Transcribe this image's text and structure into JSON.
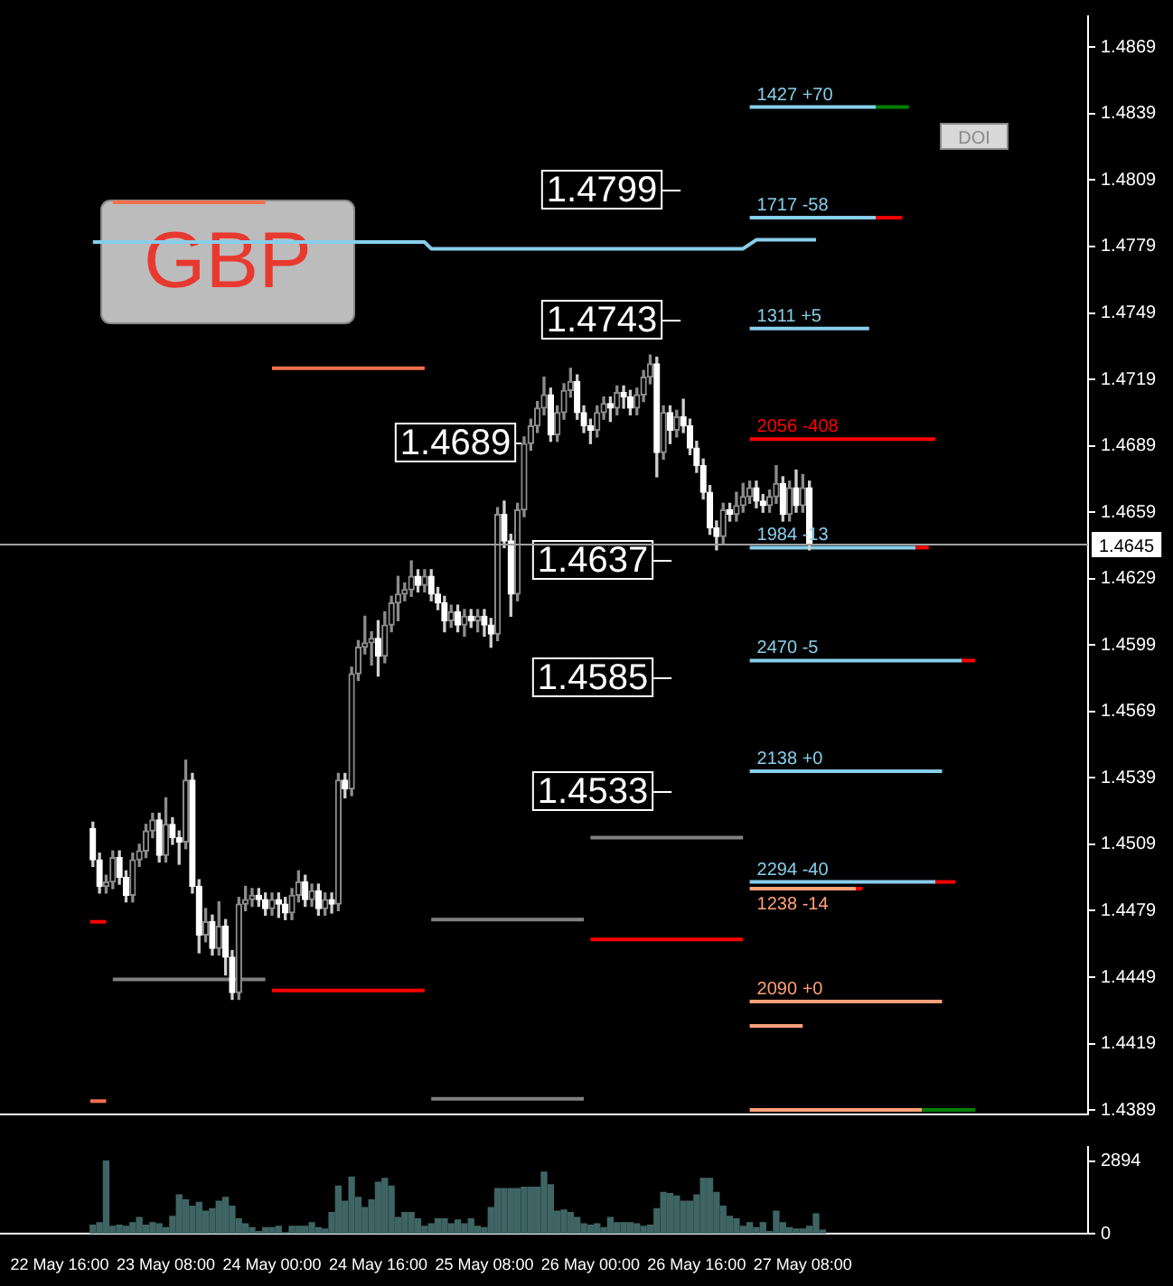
{
  "chart_data": [
    {
      "type": "candlestick",
      "xlim": [
        "--05-22T07:00",
        "--05-29T03:00"
      ],
      "ylim": [
        1.4387,
        1.4883
      ],
      "tick_labels": "y",
      "yticks": [
        1.4869,
        1.4839,
        1.4809,
        1.4779,
        1.4749,
        1.4719,
        1.4689,
        1.4659,
        1.4629,
        1.4599,
        1.4569,
        1.4539,
        1.4509,
        1.4479,
        1.4449,
        1.4419,
        1.4389
      ],
      "x": [
        "--05-22T21:00",
        "--05-22T22:00",
        "--05-22T23:00",
        "--05-23T00:00",
        "--05-23T01:00",
        "--05-23T02:00",
        "--05-23T03:00",
        "--05-23T04:00",
        "--05-23T05:00",
        "--05-23T06:00",
        "--05-23T07:00",
        "--05-23T08:00",
        "--05-23T09:00",
        "--05-23T10:00",
        "--05-23T11:00",
        "--05-23T12:00",
        "--05-23T13:00",
        "--05-23T14:00",
        "--05-23T15:00",
        "--05-23T16:00",
        "--05-23T17:00",
        "--05-23T18:00",
        "--05-23T19:00",
        "--05-23T20:00",
        "--05-23T21:00",
        "--05-23T22:00",
        "--05-23T23:00",
        "--05-24T00:00",
        "--05-24T01:00",
        "--05-24T02:00",
        "--05-24T03:00",
        "--05-24T04:00",
        "--05-24T05:00",
        "--05-24T06:00",
        "--05-24T07:00",
        "--05-24T08:00",
        "--05-24T09:00",
        "--05-24T10:00",
        "--05-24T11:00",
        "--05-24T12:00",
        "--05-24T13:00",
        "--05-24T14:00",
        "--05-24T15:00",
        "--05-24T16:00",
        "--05-24T17:00",
        "--05-24T18:00",
        "--05-24T19:00",
        "--05-24T20:00",
        "--05-24T21:00",
        "--05-24T22:00",
        "--05-24T23:00",
        "--05-25T00:00",
        "--05-25T01:00",
        "--05-25T02:00",
        "--05-25T03:00",
        "--05-25T04:00",
        "--05-25T05:00",
        "--05-25T06:00",
        "--05-25T07:00",
        "--05-25T08:00",
        "--05-25T09:00",
        "--05-25T10:00",
        "--05-25T11:00",
        "--05-25T12:00",
        "--05-25T13:00",
        "--05-25T14:00",
        "--05-25T15:00",
        "--05-25T16:00",
        "--05-25T17:00",
        "--05-25T18:00",
        "--05-25T19:00",
        "--05-25T20:00",
        "--05-25T21:00",
        "--05-25T22:00",
        "--05-25T23:00",
        "--05-26T00:00",
        "--05-26T01:00",
        "--05-26T02:00",
        "--05-26T03:00",
        "--05-26T04:00",
        "--05-26T05:00",
        "--05-26T06:00",
        "--05-26T07:00",
        "--05-26T08:00",
        "--05-26T09:00",
        "--05-26T10:00",
        "--05-26T11:00",
        "--05-26T12:00",
        "--05-26T13:00",
        "--05-26T14:00",
        "--05-26T15:00",
        "--05-26T16:00",
        "--05-26T17:00",
        "--05-26T18:00",
        "--05-26T19:00",
        "--05-26T20:00",
        "--05-26T21:00",
        "--05-26T22:00",
        "--05-26T23:00",
        "--05-27T00:00",
        "--05-27T01:00",
        "--05-27T02:00",
        "--05-27T03:00",
        "--05-27T04:00",
        "--05-27T05:00",
        "--05-27T06:00",
        "--05-27T07:00",
        "--05-27T08:00",
        "--05-27T09:00"
      ],
      "ohlc": [
        [
          1.4516,
          1.4519,
          1.4499,
          1.4502
        ],
        [
          1.4502,
          1.4505,
          1.4487,
          1.449
        ],
        [
          1.449,
          1.4495,
          1.4487,
          1.4492
        ],
        [
          1.4492,
          1.4506,
          1.4489,
          1.4503
        ],
        [
          1.4503,
          1.4506,
          1.4491,
          1.4494
        ],
        [
          1.4494,
          1.4497,
          1.4483,
          1.4486
        ],
        [
          1.4486,
          1.4505,
          1.4483,
          1.4502
        ],
        [
          1.4502,
          1.4509,
          1.4499,
          1.4506
        ],
        [
          1.4506,
          1.4518,
          1.4503,
          1.4515
        ],
        [
          1.4515,
          1.4523,
          1.4512,
          1.452
        ],
        [
          1.452,
          1.4523,
          1.4501,
          1.4504
        ],
        [
          1.4504,
          1.453,
          1.4501,
          1.4518
        ],
        [
          1.4518,
          1.4521,
          1.4509,
          1.4512
        ],
        [
          1.4512,
          1.4515,
          1.45,
          1.451
        ],
        [
          1.451,
          1.4547,
          1.4507,
          1.4538
        ],
        [
          1.4538,
          1.4541,
          1.4487,
          1.449
        ],
        [
          1.449,
          1.4493,
          1.446,
          1.4468
        ],
        [
          1.4468,
          1.448,
          1.4465,
          1.4474
        ],
        [
          1.4474,
          1.4477,
          1.4459,
          1.4462
        ],
        [
          1.4462,
          1.4483,
          1.4459,
          1.4472
        ],
        [
          1.4472,
          1.4475,
          1.445,
          1.4458
        ],
        [
          1.4458,
          1.4461,
          1.4439,
          1.4442
        ],
        [
          1.4442,
          1.4485,
          1.4439,
          1.4482
        ],
        [
          1.4482,
          1.449,
          1.4479,
          1.4484
        ],
        [
          1.4484,
          1.4489,
          1.4481,
          1.4486
        ],
        [
          1.4486,
          1.4489,
          1.4481,
          1.4484
        ],
        [
          1.4484,
          1.4487,
          1.4477,
          1.448
        ],
        [
          1.448,
          1.4487,
          1.4477,
          1.4484
        ],
        [
          1.4484,
          1.4487,
          1.4476,
          1.4482
        ],
        [
          1.4482,
          1.4485,
          1.4475,
          1.4478
        ],
        [
          1.4478,
          1.4489,
          1.4475,
          1.4486
        ],
        [
          1.4486,
          1.4497,
          1.4483,
          1.4492
        ],
        [
          1.4492,
          1.4495,
          1.4481,
          1.4484
        ],
        [
          1.4484,
          1.4491,
          1.4481,
          1.4488
        ],
        [
          1.4488,
          1.4491,
          1.4477,
          1.448
        ],
        [
          1.448,
          1.4487,
          1.4477,
          1.4484
        ],
        [
          1.4484,
          1.4487,
          1.4478,
          1.4482
        ],
        [
          1.4482,
          1.4541,
          1.4479,
          1.4538
        ],
        [
          1.4538,
          1.4541,
          1.453,
          1.4534
        ],
        [
          1.4534,
          1.4589,
          1.4531,
          1.4586
        ],
        [
          1.4586,
          1.4601,
          1.4583,
          1.4598
        ],
        [
          1.4598,
          1.4612,
          1.4595,
          1.46
        ],
        [
          1.46,
          1.4605,
          1.459,
          1.4602
        ],
        [
          1.4602,
          1.461,
          1.4585,
          1.4594
        ],
        [
          1.4594,
          1.4614,
          1.4591,
          1.4608
        ],
        [
          1.4608,
          1.4621,
          1.4605,
          1.4618
        ],
        [
          1.4618,
          1.463,
          1.461,
          1.4622
        ],
        [
          1.4622,
          1.4627,
          1.4619,
          1.4624
        ],
        [
          1.4624,
          1.4637,
          1.4621,
          1.463
        ],
        [
          1.463,
          1.4633,
          1.4623,
          1.4626
        ],
        [
          1.4626,
          1.4633,
          1.4623,
          1.463
        ],
        [
          1.463,
          1.4633,
          1.4619,
          1.4622
        ],
        [
          1.4622,
          1.4625,
          1.4615,
          1.4618
        ],
        [
          1.4618,
          1.4621,
          1.4605,
          1.461
        ],
        [
          1.461,
          1.4617,
          1.4607,
          1.4614
        ],
        [
          1.4614,
          1.4617,
          1.4605,
          1.4608
        ],
        [
          1.4608,
          1.4615,
          1.4603,
          1.4612
        ],
        [
          1.4612,
          1.4615,
          1.4607,
          1.461
        ],
        [
          1.461,
          1.4615,
          1.4605,
          1.4612
        ],
        [
          1.4612,
          1.4615,
          1.4603,
          1.4608
        ],
        [
          1.4608,
          1.4611,
          1.4598,
          1.4604
        ],
        [
          1.4604,
          1.4661,
          1.4601,
          1.4658
        ],
        [
          1.4658,
          1.4664,
          1.4643,
          1.4646
        ],
        [
          1.4646,
          1.4649,
          1.4612,
          1.4622
        ],
        [
          1.4622,
          1.4663,
          1.4619,
          1.466
        ],
        [
          1.466,
          1.4693,
          1.4657,
          1.469
        ],
        [
          1.469,
          1.4701,
          1.4687,
          1.4698
        ],
        [
          1.4698,
          1.4709,
          1.4695,
          1.4706
        ],
        [
          1.4706,
          1.472,
          1.4703,
          1.4712
        ],
        [
          1.4712,
          1.4715,
          1.4691,
          1.4694
        ],
        [
          1.4694,
          1.4707,
          1.4691,
          1.4704
        ],
        [
          1.4704,
          1.4717,
          1.4701,
          1.4714
        ],
        [
          1.4714,
          1.4724,
          1.4711,
          1.4718
        ],
        [
          1.4718,
          1.4721,
          1.4701,
          1.4704
        ],
        [
          1.4704,
          1.4707,
          1.4695,
          1.4698
        ],
        [
          1.4698,
          1.4701,
          1.469,
          1.4696
        ],
        [
          1.4696,
          1.4707,
          1.4693,
          1.4704
        ],
        [
          1.4704,
          1.4711,
          1.4701,
          1.4708
        ],
        [
          1.4708,
          1.4711,
          1.47,
          1.4706
        ],
        [
          1.4706,
          1.4716,
          1.4703,
          1.4713
        ],
        [
          1.4713,
          1.4716,
          1.4706,
          1.4711
        ],
        [
          1.4711,
          1.4714,
          1.4703,
          1.4706
        ],
        [
          1.4706,
          1.4715,
          1.4703,
          1.4712
        ],
        [
          1.4712,
          1.4723,
          1.4709,
          1.472
        ],
        [
          1.472,
          1.473,
          1.4717,
          1.4726
        ],
        [
          1.4726,
          1.4729,
          1.4675,
          1.4686
        ],
        [
          1.4686,
          1.4707,
          1.4683,
          1.4704
        ],
        [
          1.4704,
          1.4707,
          1.469,
          1.4696
        ],
        [
          1.4696,
          1.4705,
          1.4693,
          1.4702
        ],
        [
          1.4702,
          1.471,
          1.4695,
          1.4698
        ],
        [
          1.4698,
          1.4701,
          1.4685,
          1.4688
        ],
        [
          1.4688,
          1.4691,
          1.4677,
          1.468
        ],
        [
          1.468,
          1.4683,
          1.4665,
          1.4668
        ],
        [
          1.4668,
          1.4671,
          1.4649,
          1.4652
        ],
        [
          1.4652,
          1.4655,
          1.4642,
          1.4648
        ],
        [
          1.4648,
          1.4663,
          1.4645,
          1.466
        ],
        [
          1.466,
          1.4663,
          1.4655,
          1.4658
        ],
        [
          1.4658,
          1.4668,
          1.4655,
          1.4662
        ],
        [
          1.4662,
          1.4672,
          1.4659,
          1.4666
        ],
        [
          1.4666,
          1.4673,
          1.4663,
          1.467
        ],
        [
          1.467,
          1.4673,
          1.4661,
          1.4664
        ],
        [
          1.4664,
          1.4667,
          1.4659,
          1.4662
        ],
        [
          1.4662,
          1.4669,
          1.4659,
          1.4666
        ],
        [
          1.4666,
          1.468,
          1.4663,
          1.4672
        ],
        [
          1.4672,
          1.4675,
          1.4655,
          1.4658
        ],
        [
          1.4658,
          1.4673,
          1.4655,
          1.467
        ],
        [
          1.467,
          1.4678,
          1.4659,
          1.4662
        ],
        [
          1.4662,
          1.4676,
          1.4659,
          1.467
        ],
        [
          1.467,
          1.4673,
          1.4642,
          1.4645
        ]
      ],
      "series": [
        {
          "type": "line",
          "color": "#87ceeb",
          "x": [
            "--05-22T21:00",
            "--05-24T23:00",
            "--05-25T00:00",
            "--05-26T23:00",
            "--05-27T01:00",
            "--05-27T10:00"
          ],
          "values": [
            1.4781,
            1.4781,
            1.4778,
            1.4778,
            1.4782,
            1.4782
          ]
        },
        {
          "type": "line",
          "color": "#f4704c",
          "x": [
            "--05-23T00:00",
            "--05-23T23:00"
          ],
          "values": [
            1.4799,
            1.4799
          ]
        },
        {
          "type": "line",
          "color": "#f4704c",
          "x": [
            "--05-24T00:00",
            "--05-24T23:00"
          ],
          "values": [
            1.4724,
            1.4724
          ]
        },
        {
          "type": "line",
          "color": "#ff0000",
          "x": [
            "--05-22T20:36",
            "--05-22T23:00"
          ],
          "values": [
            1.4474,
            1.4474
          ]
        },
        {
          "type": "line",
          "color": "#f4704c",
          "x": [
            "--05-22T20:36",
            "--05-22T23:00"
          ],
          "values": [
            1.4393,
            1.4393
          ]
        },
        {
          "type": "line",
          "color": "#808080",
          "x": [
            "--05-23T00:00",
            "--05-23T23:00"
          ],
          "values": [
            1.4448,
            1.4448
          ]
        },
        {
          "type": "line",
          "color": "#ff0000",
          "x": [
            "--05-24T00:00",
            "--05-24T23:00"
          ],
          "values": [
            1.4443,
            1.4443
          ]
        },
        {
          "type": "line",
          "color": "#808080",
          "x": [
            "--05-25T00:00",
            "--05-25T23:00"
          ],
          "values": [
            1.4475,
            1.4475
          ]
        },
        {
          "type": "line",
          "color": "#808080",
          "x": [
            "--05-25T00:00",
            "--05-25T23:00"
          ],
          "values": [
            1.4394,
            1.4394
          ]
        },
        {
          "type": "line",
          "color": "#808080",
          "x": [
            "--05-26T00:00",
            "--05-26T23:00"
          ],
          "values": [
            1.4512,
            1.4512
          ]
        },
        {
          "type": "line",
          "color": "#ff0000",
          "x": [
            "--05-26T00:00",
            "--05-26T23:00"
          ],
          "values": [
            1.4466,
            1.4466
          ]
        },
        {
          "type": "line",
          "name": "1427 +70",
          "color": "#87ceeb",
          "x": [
            "--05-27T00:00",
            "--05-27T19:00"
          ],
          "values": [
            1.4842,
            1.4842
          ]
        },
        {
          "type": "line",
          "color": "#008000",
          "x": [
            "--05-27T19:00",
            "--05-28T00:00"
          ],
          "values": [
            1.4842,
            1.4842
          ]
        },
        {
          "type": "line",
          "name": "1717 -58",
          "color": "#87ceeb",
          "x": [
            "--05-27T00:00",
            "--05-27T19:00"
          ],
          "values": [
            1.4792,
            1.4792
          ]
        },
        {
          "type": "line",
          "color": "#ff0000",
          "x": [
            "--05-27T19:00",
            "--05-27T23:00"
          ],
          "values": [
            1.4792,
            1.4792
          ]
        },
        {
          "type": "line",
          "name": "1311 +5",
          "color": "#87ceeb",
          "x": [
            "--05-27T00:00",
            "--05-27T18:00"
          ],
          "values": [
            1.4742,
            1.4742
          ]
        },
        {
          "type": "line",
          "name": "2056 -408",
          "color": "#ff0000",
          "x": [
            "--05-27T00:00",
            "--05-28T04:00"
          ],
          "values": [
            1.4692,
            1.4692
          ]
        },
        {
          "type": "line",
          "name": "1984 -13",
          "color": "#87ceeb",
          "x": [
            "--05-27T00:00",
            "--05-28T01:00"
          ],
          "values": [
            1.4643,
            1.4643
          ]
        },
        {
          "type": "line",
          "color": "#ff0000",
          "x": [
            "--05-28T01:00",
            "--05-28T03:00"
          ],
          "values": [
            1.4643,
            1.4643
          ]
        },
        {
          "type": "line",
          "name": "2470 -5",
          "color": "#87ceeb",
          "x": [
            "--05-27T00:00",
            "--05-28T08:00"
          ],
          "values": [
            1.4592,
            1.4592
          ]
        },
        {
          "type": "line",
          "color": "#ff0000",
          "x": [
            "--05-28T08:00",
            "--05-28T10:00"
          ],
          "values": [
            1.4592,
            1.4592
          ]
        },
        {
          "type": "line",
          "name": "2138 +0",
          "color": "#87ceeb",
          "x": [
            "--05-27T00:00",
            "--05-28T05:00"
          ],
          "values": [
            1.4542,
            1.4542
          ]
        },
        {
          "type": "line",
          "name": "2294 -40",
          "color": "#87ceeb",
          "x": [
            "--05-27T00:00",
            "--05-28T04:00"
          ],
          "values": [
            1.4492,
            1.4492
          ]
        },
        {
          "type": "line",
          "color": "#ff0000",
          "x": [
            "--05-28T04:00",
            "--05-28T07:00"
          ],
          "values": [
            1.4492,
            1.4492
          ]
        },
        {
          "type": "line",
          "name": "1238 -14",
          "color": "#ffa07a",
          "x": [
            "--05-27T00:00",
            "--05-27T16:00"
          ],
          "values": [
            1.4489,
            1.4489
          ]
        },
        {
          "type": "line",
          "color": "#ff0000",
          "x": [
            "--05-27T16:00",
            "--05-27T17:00"
          ],
          "values": [
            1.4489,
            1.4489
          ]
        },
        {
          "type": "line",
          "name": "2090 +0",
          "color": "#ffa07a",
          "x": [
            "--05-27T00:00",
            "--05-28T05:00"
          ],
          "values": [
            1.4438,
            1.4438
          ]
        },
        {
          "type": "line",
          "color": "#ffa07a",
          "x": [
            "--05-27T00:00",
            "--05-27T08:00"
          ],
          "values": [
            1.4427,
            1.4427
          ]
        },
        {
          "type": "line",
          "color": "#ffa07a",
          "x": [
            "--05-27T00:00",
            "--05-28T02:00"
          ],
          "values": [
            1.4389,
            1.4389
          ]
        },
        {
          "type": "line",
          "color": "#008000",
          "x": [
            "--05-28T02:00",
            "--05-28T10:00"
          ],
          "values": [
            1.4389,
            1.4389
          ]
        }
      ],
      "ref_lines": [
        {
          "axis": "y",
          "value": 1.4645,
          "label": "1.4645",
          "color": "#a0a0a0"
        }
      ],
      "annotations": [
        "GBP",
        "DOI",
        "1.4799",
        "1.4743",
        "1.4689",
        "1.4637",
        "1.4585",
        "1.4533"
      ]
    },
    {
      "type": "bar",
      "color": "#3f6464",
      "xlim": [
        "--05-22T07:00",
        "--05-29T03:00"
      ],
      "ylim": [
        0,
        3450
      ],
      "yticks": [
        0,
        2894
      ],
      "xticks": [
        {
          "value": "--05-22T16:00",
          "label": "22 May 16:00"
        },
        {
          "value": "--05-23T08:00",
          "label": "23 May 08:00"
        },
        {
          "value": "--05-24T00:00",
          "label": "24 May 00:00"
        },
        {
          "value": "--05-24T16:00",
          "label": "24 May 16:00"
        },
        {
          "value": "--05-25T08:00",
          "label": "25 May 08:00"
        },
        {
          "value": "--05-26T00:00",
          "label": "26 May 00:00"
        },
        {
          "value": "--05-26T16:00",
          "label": "26 May 16:00"
        },
        {
          "value": "--05-27T08:00",
          "label": "27 May 08:00"
        }
      ],
      "x": [
        "--05-22T21:00",
        "--05-22T22:00",
        "--05-22T23:00",
        "--05-23T00:00",
        "--05-23T01:00",
        "--05-23T02:00",
        "--05-23T03:00",
        "--05-23T04:00",
        "--05-23T05:00",
        "--05-23T06:00",
        "--05-23T07:00",
        "--05-23T08:00",
        "--05-23T09:00",
        "--05-23T10:00",
        "--05-23T11:00",
        "--05-23T12:00",
        "--05-23T13:00",
        "--05-23T14:00",
        "--05-23T15:00",
        "--05-23T16:00",
        "--05-23T17:00",
        "--05-23T18:00",
        "--05-23T19:00",
        "--05-23T20:00",
        "--05-23T21:00",
        "--05-23T22:00",
        "--05-23T23:00",
        "--05-24T00:00",
        "--05-24T01:00",
        "--05-24T02:00",
        "--05-24T03:00",
        "--05-24T04:00",
        "--05-24T05:00",
        "--05-24T06:00",
        "--05-24T07:00",
        "--05-24T08:00",
        "--05-24T09:00",
        "--05-24T10:00",
        "--05-24T11:00",
        "--05-24T12:00",
        "--05-24T13:00",
        "--05-24T14:00",
        "--05-24T15:00",
        "--05-24T16:00",
        "--05-24T17:00",
        "--05-24T18:00",
        "--05-24T19:00",
        "--05-24T20:00",
        "--05-24T21:00",
        "--05-24T22:00",
        "--05-24T23:00",
        "--05-25T00:00",
        "--05-25T01:00",
        "--05-25T02:00",
        "--05-25T03:00",
        "--05-25T04:00",
        "--05-25T05:00",
        "--05-25T06:00",
        "--05-25T07:00",
        "--05-25T08:00",
        "--05-25T09:00",
        "--05-25T10:00",
        "--05-25T11:00",
        "--05-25T12:00",
        "--05-25T13:00",
        "--05-25T14:00",
        "--05-25T15:00",
        "--05-25T16:00",
        "--05-25T17:00",
        "--05-25T18:00",
        "--05-25T19:00",
        "--05-25T20:00",
        "--05-25T21:00",
        "--05-25T22:00",
        "--05-25T23:00",
        "--05-26T00:00",
        "--05-26T01:00",
        "--05-26T02:00",
        "--05-26T03:00",
        "--05-26T04:00",
        "--05-26T05:00",
        "--05-26T06:00",
        "--05-26T07:00",
        "--05-26T08:00",
        "--05-26T09:00",
        "--05-26T10:00",
        "--05-26T11:00",
        "--05-26T12:00",
        "--05-26T13:00",
        "--05-26T14:00",
        "--05-26T15:00",
        "--05-26T16:00",
        "--05-26T17:00",
        "--05-26T18:00",
        "--05-26T19:00",
        "--05-26T20:00",
        "--05-26T21:00",
        "--05-26T22:00",
        "--05-26T23:00",
        "--05-27T00:00",
        "--05-27T01:00",
        "--05-27T02:00",
        "--05-27T03:00",
        "--05-27T04:00",
        "--05-27T05:00",
        "--05-27T06:00",
        "--05-27T07:00",
        "--05-27T08:00",
        "--05-27T09:00",
        "--05-27T10:00",
        "--05-27T11:00"
      ],
      "values": [
        350,
        450,
        2894,
        300,
        350,
        300,
        450,
        650,
        350,
        450,
        400,
        250,
        700,
        1550,
        1350,
        1100,
        1250,
        900,
        1000,
        1300,
        1450,
        1100,
        600,
        400,
        250,
        100,
        250,
        250,
        300,
        50,
        300,
        300,
        300,
        450,
        250,
        200,
        850,
        1900,
        1300,
        2250,
        1450,
        1050,
        1350,
        2050,
        2200,
        1900,
        650,
        850,
        850,
        600,
        300,
        400,
        600,
        600,
        400,
        550,
        400,
        600,
        300,
        250,
        1050,
        1800,
        1800,
        1800,
        1800,
        1850,
        1850,
        1850,
        2450,
        1950,
        900,
        950,
        850,
        650,
        400,
        350,
        400,
        250,
        650,
        450,
        450,
        450,
        400,
        300,
        350,
        1000,
        1650,
        1600,
        1500,
        1300,
        1300,
        1550,
        2200,
        2200,
        1650,
        1100,
        700,
        600,
        300,
        450,
        250,
        450,
        100,
        900,
        450,
        250,
        200,
        200,
        300,
        800,
        150
      ]
    }
  ]
}
